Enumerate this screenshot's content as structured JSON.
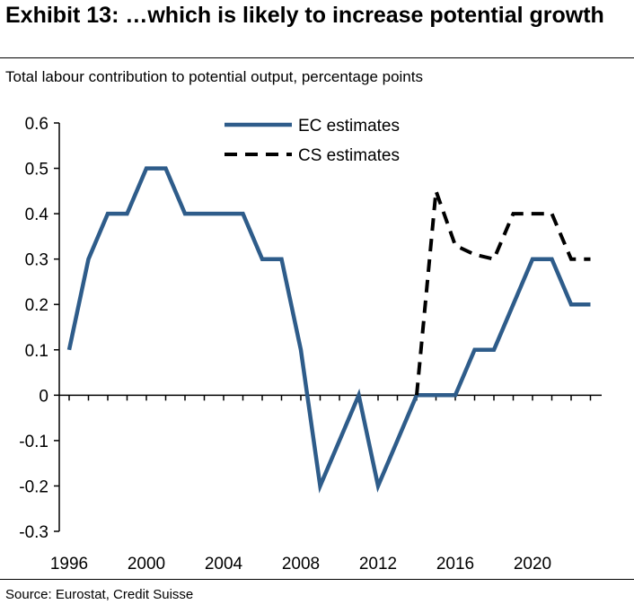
{
  "header": {
    "title": "Exhibit 13: …which is likely to increase potential growth",
    "subtitle": "Total labour contribution to potential output, percentage points"
  },
  "footer": {
    "source": "Source: Eurostat, Credit Suisse"
  },
  "chart_data": {
    "type": "line",
    "title": "",
    "xlabel": "",
    "ylabel": "",
    "ylim": [
      -0.3,
      0.6
    ],
    "yticks": [
      "0.6",
      "0.5",
      "0.4",
      "0.3",
      "0.2",
      "0.1",
      "0",
      "-0.1",
      "-0.2",
      "-0.3"
    ],
    "xlim": [
      1996,
      2023
    ],
    "xticks": [
      "1996",
      "2000",
      "2004",
      "2008",
      "2012",
      "2016",
      "2020"
    ],
    "grid": false,
    "legend_position": "top-center",
    "series": [
      {
        "name": "EC estimates",
        "color": "#2e5c8a",
        "style": "solid",
        "x": [
          1996,
          1997,
          1998,
          1999,
          2000,
          2001,
          2002,
          2003,
          2004,
          2005,
          2006,
          2007,
          2008,
          2009,
          2010,
          2011,
          2012,
          2013,
          2014,
          2015,
          2016,
          2017,
          2018,
          2019,
          2020,
          2021,
          2022,
          2023
        ],
        "y": [
          0.1,
          0.3,
          0.4,
          0.4,
          0.5,
          0.5,
          0.4,
          0.4,
          0.4,
          0.4,
          0.3,
          0.3,
          0.1,
          -0.2,
          -0.1,
          0.0,
          -0.2,
          -0.1,
          0.0,
          0.0,
          0.0,
          0.1,
          0.1,
          0.2,
          0.3,
          0.3,
          0.2,
          0.2
        ]
      },
      {
        "name": "CS estimates",
        "color": "#000000",
        "style": "dashed",
        "x": [
          2014,
          2015,
          2016,
          2017,
          2018,
          2019,
          2020,
          2021,
          2022,
          2023
        ],
        "y": [
          0.0,
          0.45,
          0.33,
          0.31,
          0.3,
          0.4,
          0.4,
          0.4,
          0.3,
          0.3
        ]
      }
    ]
  }
}
